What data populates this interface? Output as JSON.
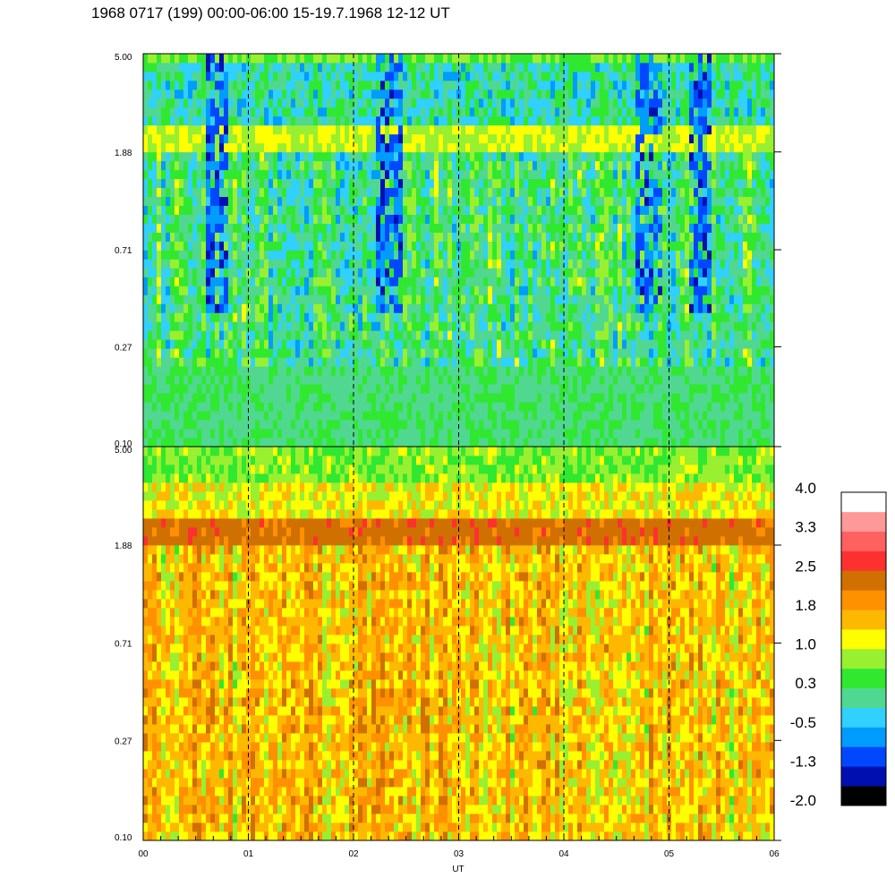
{
  "title": "1968 0717 (199) 00:00-06:00 15-19.7.1968  12-12 UT",
  "chart_data": [
    {
      "type": "heatmap",
      "panel": "upper",
      "x_range": [
        0,
        6
      ],
      "y_range": [
        0.1,
        5.0
      ],
      "y_scale": "log",
      "y_ticks": [
        "5.00",
        "1.88",
        "0.71",
        "0.27",
        "0.10"
      ],
      "dashed_vlines_x": [
        1,
        2,
        3,
        4,
        5
      ],
      "base_level": 0.2,
      "band_level": 1.0,
      "band_y": 2.1,
      "dip_level": -1.0,
      "dip_events_x": [
        0.7,
        2.35,
        4.8,
        5.3
      ]
    },
    {
      "type": "heatmap",
      "panel": "lower",
      "x_range": [
        0,
        6
      ],
      "y_range": [
        0.1,
        5.0
      ],
      "y_scale": "log",
      "y_ticks": [
        "5.00",
        "1.88",
        "0.71",
        "0.27",
        "0.10"
      ],
      "dashed_vlines_x": [
        1,
        2,
        3,
        4,
        5
      ],
      "base_level": 1.5,
      "band_level": 2.3,
      "band_y": 2.1,
      "top_level": 0.7
    }
  ],
  "x_axis": {
    "ticks": [
      "00",
      "01",
      "02",
      "03",
      "04",
      "05",
      "06"
    ],
    "label": "UT"
  },
  "colorbar": {
    "labels": [
      "4.0",
      "3.3",
      "2.5",
      "1.8",
      "1.0",
      "0.3",
      "-0.5",
      "-1.3",
      "-2.0"
    ],
    "min": -2.0,
    "max": 4.0,
    "colors": [
      "#000000",
      "#0010b0",
      "#0048ff",
      "#009cff",
      "#30d0ff",
      "#50d890",
      "#30e830",
      "#98f030",
      "#ffff00",
      "#ffb800",
      "#ff9000",
      "#d07000",
      "#ff3030",
      "#ff6060",
      "#ff9898",
      "#ffffff"
    ]
  }
}
